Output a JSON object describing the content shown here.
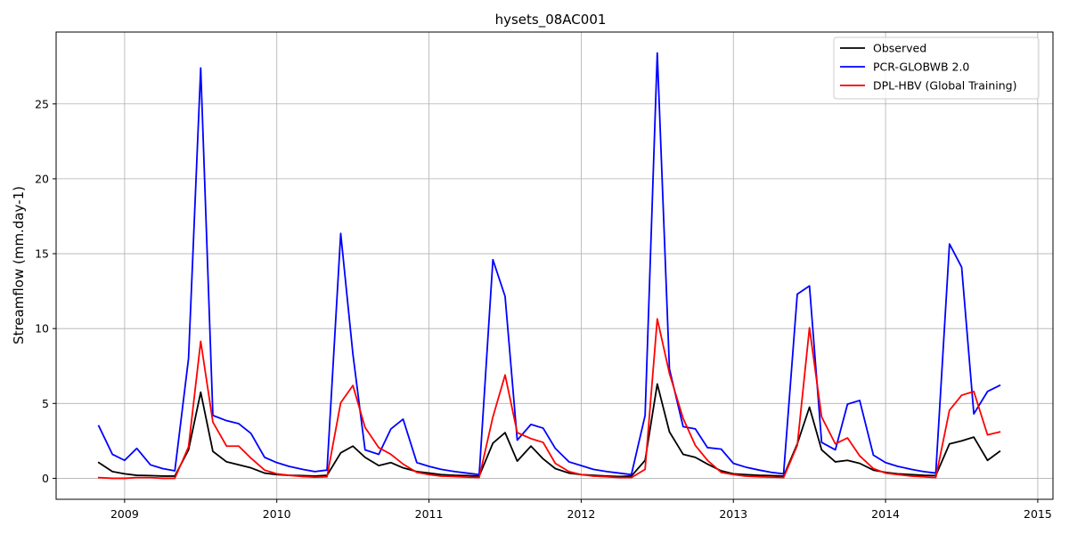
{
  "chart_data": {
    "type": "line",
    "title": "hysets_08AC001",
    "xlabel": "",
    "ylabel": "Streamflow (mm.day-1)",
    "xlim": [
      2008.55,
      2015.1
    ],
    "ylim": [
      -1.4,
      29.8
    ],
    "xticks": [
      2009,
      2010,
      2011,
      2012,
      2013,
      2014,
      2015
    ],
    "xtick_labels": [
      "2009",
      "2010",
      "2011",
      "2012",
      "2013",
      "2014",
      "2015"
    ],
    "yticks": [
      0,
      5,
      10,
      15,
      20,
      25
    ],
    "ytick_labels": [
      "0",
      "5",
      "10",
      "15",
      "20",
      "25"
    ],
    "grid": true,
    "legend_position": "top-right",
    "x": [
      2008.83,
      2008.92,
      2009.0,
      2009.08,
      2009.17,
      2009.25,
      2009.33,
      2009.42,
      2009.5,
      2009.58,
      2009.67,
      2009.75,
      2009.83,
      2009.92,
      2010.0,
      2010.08,
      2010.17,
      2010.25,
      2010.33,
      2010.42,
      2010.5,
      2010.58,
      2010.67,
      2010.75,
      2010.83,
      2010.92,
      2011.0,
      2011.08,
      2011.17,
      2011.25,
      2011.33,
      2011.42,
      2011.5,
      2011.58,
      2011.67,
      2011.75,
      2011.83,
      2011.92,
      2012.0,
      2012.08,
      2012.17,
      2012.25,
      2012.33,
      2012.42,
      2012.5,
      2012.58,
      2012.67,
      2012.75,
      2012.83,
      2012.92,
      2013.0,
      2013.08,
      2013.17,
      2013.25,
      2013.33,
      2013.42,
      2013.5,
      2013.58,
      2013.67,
      2013.75,
      2013.83,
      2013.92,
      2014.0,
      2014.08,
      2014.17,
      2014.25,
      2014.33,
      2014.42,
      2014.5,
      2014.58,
      2014.67,
      2014.75
    ],
    "series": [
      {
        "name": "Observed",
        "color": "#000000",
        "values": [
          1.05,
          0.45,
          0.3,
          0.2,
          0.18,
          0.15,
          0.15,
          1.9,
          5.75,
          1.8,
          1.1,
          0.9,
          0.7,
          0.35,
          0.25,
          0.2,
          0.18,
          0.15,
          0.2,
          1.7,
          2.15,
          1.4,
          0.85,
          1.05,
          0.7,
          0.45,
          0.35,
          0.25,
          0.2,
          0.18,
          0.15,
          2.35,
          3.05,
          1.15,
          2.15,
          1.3,
          0.65,
          0.35,
          0.25,
          0.2,
          0.15,
          0.12,
          0.15,
          1.2,
          6.3,
          3.1,
          1.6,
          1.4,
          0.95,
          0.5,
          0.3,
          0.25,
          0.2,
          0.18,
          0.15,
          2.3,
          4.75,
          1.9,
          1.1,
          1.2,
          1.0,
          0.55,
          0.4,
          0.3,
          0.25,
          0.2,
          0.18,
          2.3,
          2.5,
          2.75,
          1.2,
          1.8
        ]
      },
      {
        "name": "PCR-GLOBWB 2.0",
        "color": "#0000ff",
        "values": [
          3.5,
          1.6,
          1.2,
          2.0,
          0.9,
          0.65,
          0.5,
          8.0,
          27.4,
          4.2,
          3.85,
          3.65,
          3.0,
          1.4,
          1.05,
          0.8,
          0.6,
          0.45,
          0.55,
          16.35,
          8.3,
          1.9,
          1.6,
          3.3,
          3.95,
          1.05,
          0.8,
          0.6,
          0.45,
          0.35,
          0.25,
          14.6,
          12.15,
          2.55,
          3.6,
          3.35,
          2.0,
          1.1,
          0.85,
          0.6,
          0.45,
          0.35,
          0.25,
          4.2,
          28.4,
          7.3,
          3.45,
          3.3,
          2.05,
          1.95,
          1.0,
          0.75,
          0.55,
          0.4,
          0.3,
          12.3,
          12.85,
          2.4,
          1.9,
          4.95,
          5.2,
          1.55,
          1.05,
          0.8,
          0.6,
          0.45,
          0.35,
          15.65,
          14.1,
          4.3,
          5.8,
          6.2
        ]
      },
      {
        "name": "DPL-HBV (Global Training)",
        "color": "#ff0000",
        "values": [
          0.05,
          0.0,
          0.0,
          0.05,
          0.05,
          0.0,
          0.0,
          2.1,
          9.15,
          3.75,
          2.15,
          2.15,
          1.35,
          0.55,
          0.3,
          0.2,
          0.12,
          0.08,
          0.1,
          5.05,
          6.2,
          3.4,
          2.05,
          1.6,
          0.95,
          0.4,
          0.25,
          0.15,
          0.12,
          0.08,
          0.05,
          4.1,
          6.9,
          3.05,
          2.65,
          2.4,
          1.0,
          0.45,
          0.25,
          0.15,
          0.1,
          0.05,
          0.05,
          0.6,
          10.65,
          7.0,
          4.0,
          2.2,
          1.2,
          0.4,
          0.25,
          0.15,
          0.1,
          0.08,
          0.05,
          2.2,
          10.05,
          4.1,
          2.3,
          2.7,
          1.5,
          0.65,
          0.35,
          0.25,
          0.15,
          0.1,
          0.05,
          4.55,
          5.55,
          5.8,
          2.9,
          3.1
        ]
      }
    ]
  }
}
